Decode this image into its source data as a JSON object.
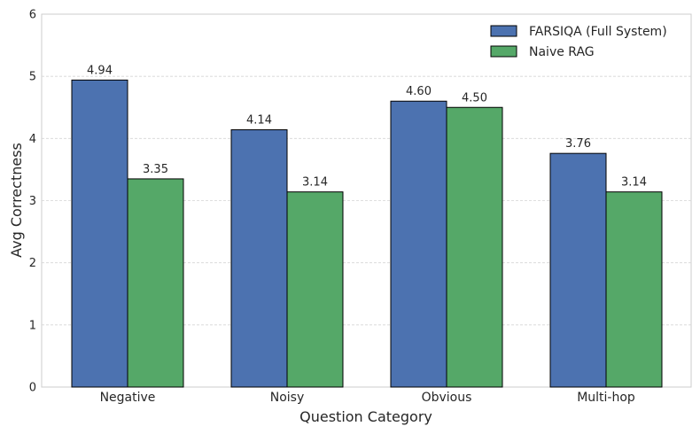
{
  "chart_data": {
    "type": "bar",
    "categories": [
      "Negative",
      "Noisy",
      "Obvious",
      "Multi-hop"
    ],
    "series": [
      {
        "name": "FARSIQA (Full System)",
        "values": [
          4.94,
          4.14,
          4.6,
          3.76
        ],
        "color": "#4c72b0"
      },
      {
        "name": "Naive RAG",
        "values": [
          3.35,
          3.14,
          4.5,
          3.14
        ],
        "color": "#55a868"
      }
    ],
    "xlabel": "Question Category",
    "ylabel": "Avg Correctness",
    "ylim": [
      0,
      6
    ],
    "yticks": [
      0,
      1,
      2,
      3,
      4,
      5,
      6
    ],
    "grid": true,
    "legend_position": "top-right"
  }
}
